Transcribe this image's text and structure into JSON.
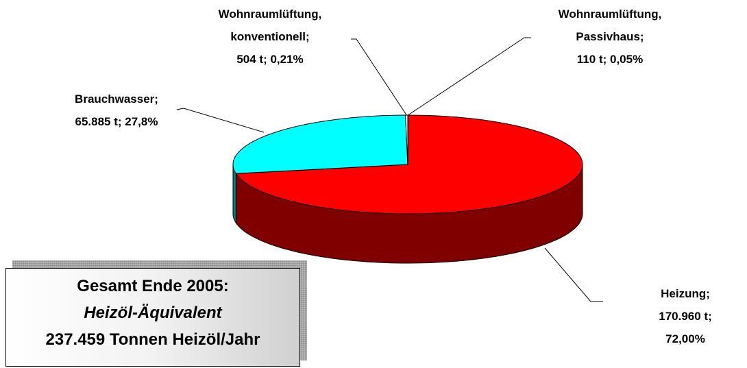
{
  "chart_data": {
    "type": "pie3d",
    "categories": [
      "Wohnraumlüftung,\nPassivhaus;",
      "Heizung;",
      "Brauchwasser;",
      "Wohnraumlüftung,\nkonventionell;"
    ],
    "values": [
      110,
      170960,
      65885,
      504
    ],
    "value_labels": [
      "110 t; 0,05%",
      "170.960 t; 72,00%",
      "65.885 t; 27,8%",
      "504 t; 0,21%"
    ],
    "colors": [
      "#ffffcc",
      "#ff0000",
      "#00ffff",
      "#ffffff"
    ],
    "side_colors": [
      "#808066",
      "#800000",
      "#008080",
      "#808080"
    ],
    "annotation": {
      "lines": [
        "Gesamt Ende 2005:",
        "Heizöl-Äquivalent",
        "237.459 Tonnen Heizöl/Jahr"
      ]
    }
  }
}
